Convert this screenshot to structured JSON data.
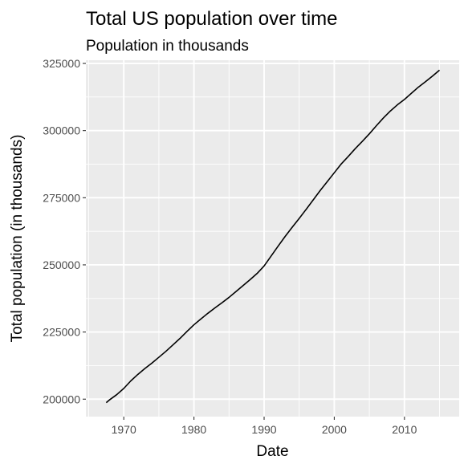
{
  "chart_data": {
    "type": "line",
    "title": "Total US population over time",
    "subtitle": "Population in thousands",
    "xlabel": "Date",
    "ylabel": "Total population (in thousands)",
    "xlim": [
      1964.6,
      2017.8
    ],
    "ylim": [
      193500,
      326200
    ],
    "x_ticks": [
      1970,
      1980,
      1990,
      2000,
      2010
    ],
    "x_tick_labels": [
      "1970",
      "1980",
      "1990",
      "2000",
      "2010"
    ],
    "y_ticks": [
      200000,
      225000,
      250000,
      275000,
      300000,
      325000
    ],
    "y_tick_labels": [
      "200000",
      "225000",
      "250000",
      "275000",
      "300000",
      "325000"
    ],
    "grid": true,
    "legend": "none",
    "series": [
      {
        "color": "#000000",
        "x": [
          1967.5,
          1968,
          1969,
          1970,
          1971,
          1972,
          1973,
          1974,
          1975,
          1976,
          1977,
          1978,
          1979,
          1980,
          1981,
          1982,
          1983,
          1984,
          1985,
          1986,
          1987,
          1988,
          1989,
          1990,
          1991,
          1992,
          1993,
          1994,
          1995,
          1996,
          1997,
          1998,
          1999,
          2000,
          2001,
          2002,
          2003,
          2004,
          2005,
          2006,
          2007,
          2008,
          2009,
          2010,
          2011,
          2012,
          2013,
          2014,
          2015
        ],
        "values": [
          198700,
          199800,
          201700,
          204000,
          206800,
          209200,
          211400,
          213400,
          215600,
          217800,
          220200,
          222600,
          225200,
          227700,
          229900,
          232000,
          234000,
          235900,
          237900,
          240100,
          242300,
          244500,
          246800,
          249600,
          253300,
          257000,
          260600,
          264000,
          267300,
          270700,
          274200,
          277700,
          281000,
          284300,
          287600,
          290400,
          293300,
          296000,
          298800,
          301800,
          304700,
          307300,
          309600,
          311600,
          313900,
          316200,
          318200,
          320300,
          322500
        ]
      }
    ]
  }
}
